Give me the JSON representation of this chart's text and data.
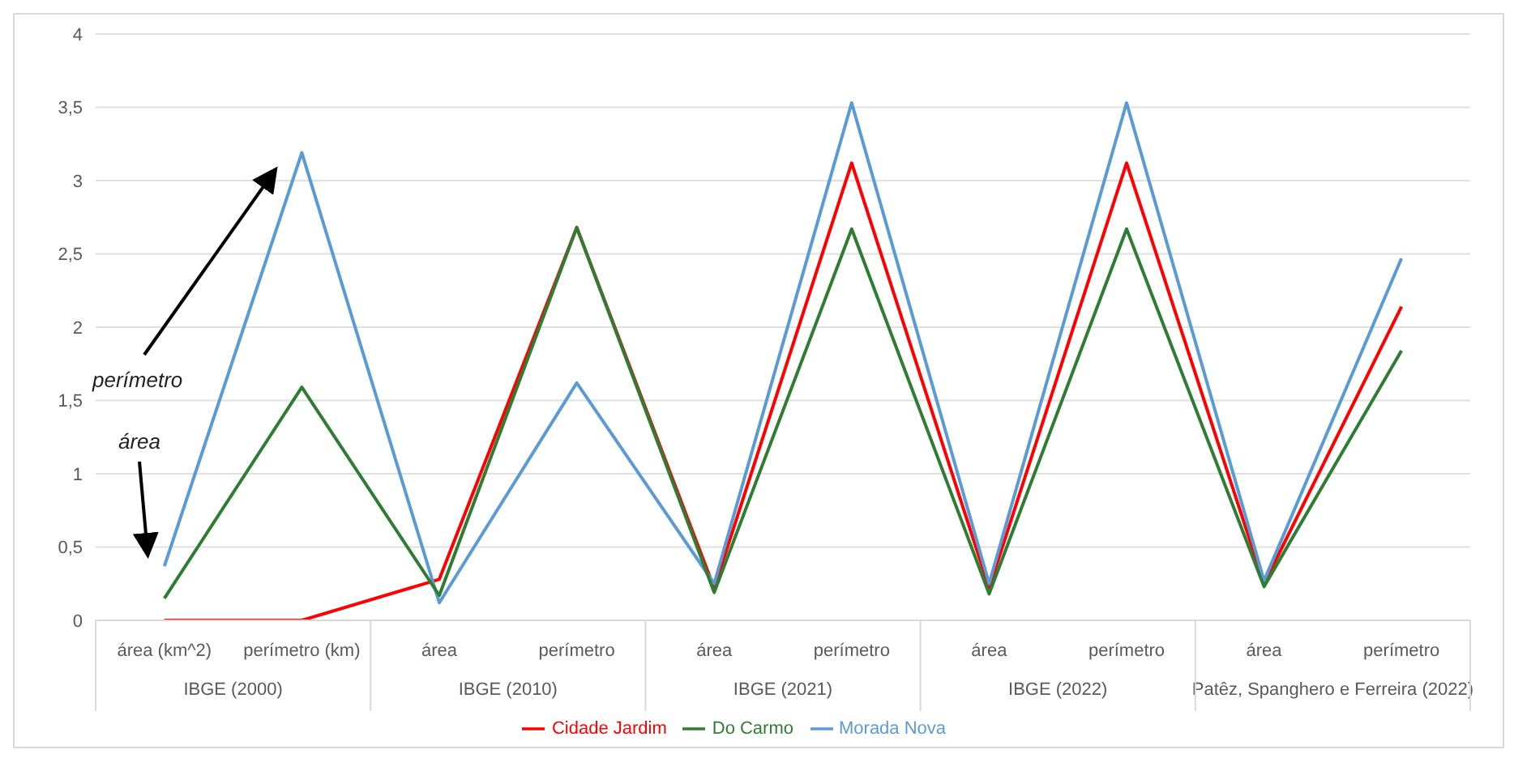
{
  "chart_data": {
    "type": "line",
    "categories": [
      "área (km^2)",
      "perímetro (km)",
      "área",
      "perímetro",
      "área",
      "perímetro",
      "área",
      "perímetro",
      "área",
      "perímetro"
    ],
    "series": [
      {
        "name": "Cidade Jardim",
        "color": "#ff0000",
        "values": [
          0,
          0,
          0.28,
          2.68,
          0.22,
          3.12,
          0.22,
          3.12,
          0.25,
          2.14
        ]
      },
      {
        "name": "Morada Nova",
        "color": "#5b9bd5",
        "values": [
          0.37,
          3.19,
          0.12,
          1.62,
          0.25,
          3.53,
          0.25,
          3.53,
          0.27,
          2.47
        ]
      },
      {
        "name": "Do Carmo",
        "color": "#2e7d32",
        "values": [
          0.15,
          1.59,
          0.17,
          2.68,
          0.19,
          2.67,
          0.18,
          2.67,
          0.23,
          1.84
        ]
      }
    ],
    "annotations": [
      "IBGE (2000)",
      "IBGE (2010)",
      "IBGE (2021)",
      "IBGE (2022)",
      "Patêz, Spanghero e Ferreira (2022)",
      "perímetro",
      "área"
    ],
    "ylim": [
      0,
      4
    ],
    "yticks": [
      0,
      {
        "value": 0.5,
        "label": "0,5"
      },
      1,
      {
        "value": 1.5,
        "label": "1,5"
      },
      2,
      {
        "value": 2.5,
        "label": "2,5"
      },
      3,
      {
        "value": 3.5,
        "label": "3,5"
      },
      4
    ],
    "grid": "y",
    "legend": "bottom",
    "marker": "none",
    "line_style": "solid"
  }
}
